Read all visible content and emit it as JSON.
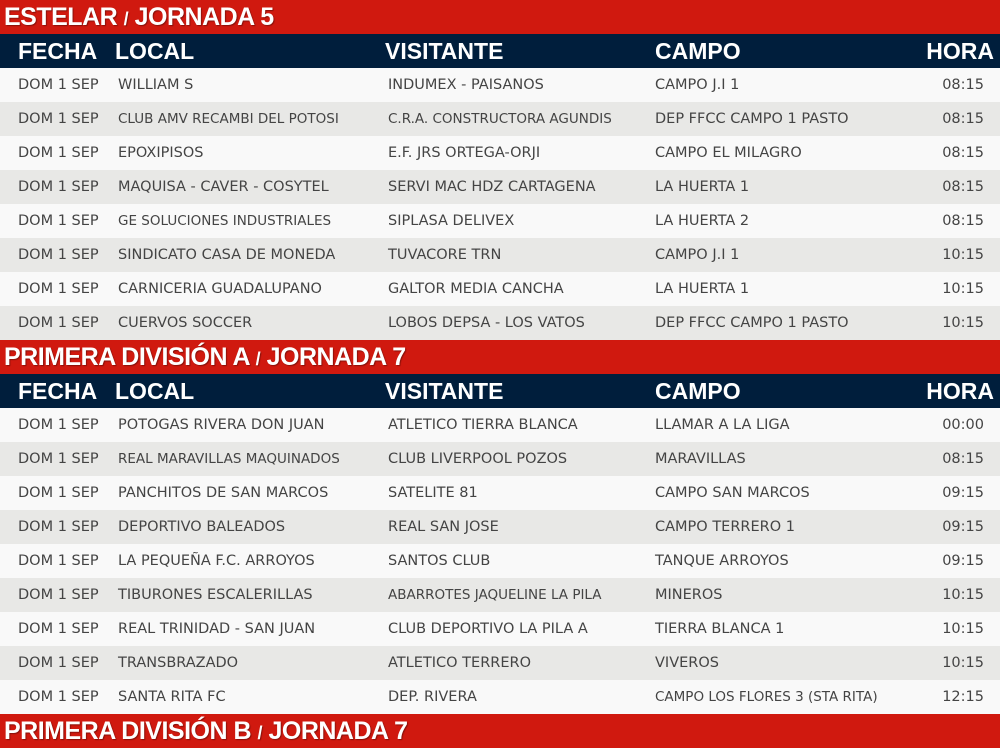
{
  "columns": [
    "FECHA",
    "LOCAL",
    "VISITANTE",
    "CAMPO",
    "HORA"
  ],
  "colors": {
    "title_bg": "#d0190f",
    "header_bg": "#001e3c",
    "row_light": "#f9f9f9",
    "row_dark": "#e8e8e6"
  },
  "sections": [
    {
      "title": "ESTELAR",
      "sep": "/",
      "subtitle": "JORNADA 5",
      "rows": [
        [
          "DOM 1 SEP",
          "WILLIAM S",
          "INDUMEX - PAISANOS",
          "CAMPO J.I 1",
          "08:15"
        ],
        [
          "DOM 1 SEP",
          "CLUB AMV RECAMBI DEL POTOSI",
          "C.R.A. CONSTRUCTORA AGUNDIS",
          "DEP FFCC CAMPO 1 PASTO",
          "08:15"
        ],
        [
          "DOM 1 SEP",
          "EPOXIPISOS",
          "E.F. JRS ORTEGA-ORJI",
          "CAMPO EL MILAGRO",
          "08:15"
        ],
        [
          "DOM 1 SEP",
          "MAQUISA - CAVER - COSYTEL",
          "SERVI MAC HDZ CARTAGENA",
          "LA HUERTA 1",
          "08:15"
        ],
        [
          "DOM 1 SEP",
          "GE SOLUCIONES INDUSTRIALES",
          "SIPLASA DELIVEX",
          "LA HUERTA 2",
          "08:15"
        ],
        [
          "DOM 1 SEP",
          "SINDICATO CASA DE MONEDA",
          "TUVACORE TRN",
          "CAMPO J.I 1",
          "10:15"
        ],
        [
          "DOM 1 SEP",
          "CARNICERIA GUADALUPANO",
          "GALTOR MEDIA CANCHA",
          "LA HUERTA 1",
          "10:15"
        ],
        [
          "DOM 1 SEP",
          "CUERVOS SOCCER",
          "LOBOS DEPSA - LOS VATOS",
          "DEP FFCC CAMPO 1 PASTO",
          "10:15"
        ]
      ]
    },
    {
      "title": "PRIMERA DIVISIÓN A",
      "sep": "/",
      "subtitle": "JORNADA 7",
      "rows": [
        [
          "DOM 1 SEP",
          "POTOGAS RIVERA DON JUAN",
          "ATLETICO TIERRA BLANCA",
          "LLAMAR A LA LIGA",
          "00:00"
        ],
        [
          "DOM 1 SEP",
          "REAL MARAVILLAS MAQUINADOS",
          "CLUB LIVERPOOL POZOS",
          "MARAVILLAS",
          "08:15"
        ],
        [
          "DOM 1 SEP",
          "PANCHITOS DE SAN MARCOS",
          "SATELITE 81",
          "CAMPO SAN MARCOS",
          "09:15"
        ],
        [
          "DOM 1 SEP",
          "DEPORTIVO BALEADOS",
          "REAL SAN JOSE",
          "CAMPO TERRERO 1",
          "09:15"
        ],
        [
          "DOM 1 SEP",
          "LA PEQUEÑA F.C. ARROYOS",
          "SANTOS CLUB",
          "TANQUE ARROYOS",
          "09:15"
        ],
        [
          "DOM 1 SEP",
          "TIBURONES ESCALERILLAS",
          "ABARROTES JAQUELINE LA PILA",
          "MINEROS",
          "10:15"
        ],
        [
          "DOM 1 SEP",
          "REAL TRINIDAD - SAN JUAN",
          "CLUB DEPORTIVO LA PILA A",
          "TIERRA BLANCA 1",
          "10:15"
        ],
        [
          "DOM 1 SEP",
          "TRANSBRAZADO",
          "ATLETICO TERRERO",
          "VIVEROS",
          "10:15"
        ],
        [
          "DOM 1 SEP",
          "SANTA RITA FC",
          "DEP. RIVERA",
          "CAMPO LOS FLORES 3 (STA RITA)",
          "12:15"
        ]
      ]
    },
    {
      "title": "PRIMERA DIVISIÓN B",
      "sep": "/",
      "subtitle": "JORNADA 7",
      "rows": []
    }
  ]
}
